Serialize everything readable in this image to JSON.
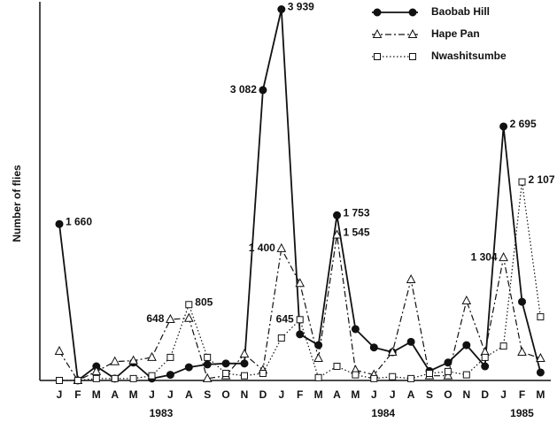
{
  "chart_data": {
    "type": "line",
    "y_label": "Number of flies",
    "categories": [
      "J",
      "F",
      "M",
      "A",
      "M",
      "J",
      "J",
      "A",
      "S",
      "O",
      "N",
      "D",
      "J",
      "F",
      "M",
      "A",
      "M",
      "J",
      "J",
      "A",
      "S",
      "O",
      "N",
      "D",
      "J",
      "F",
      "M"
    ],
    "years": [
      "1983",
      "1984",
      "1985"
    ],
    "ylim": [
      0,
      4000
    ],
    "legend": "upper right",
    "series": [
      {
        "name": "Baobab Hill",
        "color": "#111111",
        "marker": "circle",
        "style": "solid",
        "values": [
          1660,
          0,
          150,
          20,
          190,
          20,
          60,
          140,
          170,
          180,
          180,
          3082,
          3939,
          490,
          375,
          1753,
          545,
          350,
          300,
          410,
          100,
          190,
          375,
          150,
          2695,
          835,
          85
        ],
        "value_labels": [
          "1 660",
          null,
          null,
          null,
          null,
          null,
          null,
          null,
          null,
          null,
          null,
          "3 082",
          "3 939",
          null,
          null,
          "1 753",
          null,
          null,
          null,
          null,
          null,
          null,
          null,
          null,
          "2 695",
          null,
          null
        ]
      },
      {
        "name": "Hape Pan",
        "color": "#111111",
        "marker": "triangle",
        "style": "dashdot",
        "values": [
          310,
          0,
          95,
          200,
          210,
          245,
          648,
          660,
          20,
          50,
          280,
          110,
          1400,
          1030,
          235,
          1545,
          110,
          60,
          300,
          1070,
          50,
          50,
          845,
          300,
          1304,
          300,
          235
        ],
        "value_labels": [
          null,
          null,
          null,
          null,
          null,
          null,
          "648",
          null,
          null,
          null,
          null,
          null,
          "1 400",
          null,
          null,
          "1 545",
          null,
          null,
          null,
          null,
          null,
          null,
          null,
          null,
          "1 304",
          null,
          null
        ]
      },
      {
        "name": "Nwashitsumbe",
        "color": "#111111",
        "marker": "square",
        "style": "dotted",
        "values": [
          0,
          0,
          20,
          20,
          20,
          50,
          245,
          805,
          245,
          75,
          50,
          75,
          450,
          645,
          30,
          150,
          60,
          20,
          40,
          20,
          75,
          95,
          60,
          245,
          365,
          2107,
          675
        ],
        "value_labels": [
          null,
          null,
          null,
          null,
          null,
          null,
          null,
          "805",
          null,
          null,
          null,
          null,
          null,
          "645",
          null,
          null,
          null,
          null,
          null,
          null,
          null,
          null,
          null,
          null,
          null,
          "2 107",
          null
        ]
      }
    ]
  }
}
